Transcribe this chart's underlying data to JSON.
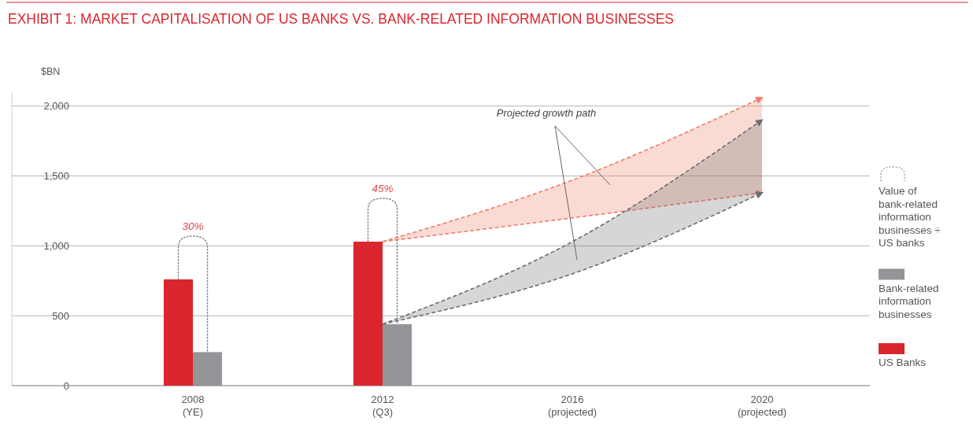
{
  "chart_data": {
    "type": "bar",
    "title": "EXHIBIT 1: MARKET CAPITALISATION OF US BANKS VS. BANK-RELATED INFORMATION BUSINESSES",
    "ylabel": "$BN",
    "categories": [
      "2008\n(YE)",
      "2012\n(Q3)",
      "2016\n(projected)",
      "2020\n(projected)"
    ],
    "series": [
      {
        "name": "US Banks",
        "color": "#d9262e",
        "values": [
          760,
          1030,
          null,
          null
        ]
      },
      {
        "name": "Bank-related information businesses",
        "color": "#939598",
        "values": [
          240,
          440,
          null,
          null
        ]
      },
      {
        "type": "line",
        "color": "#ee7c66",
        "line_style": "dashed",
        "values": [
          null,
          1030,
          1470,
          2060
        ],
        "upper": [
          null,
          1030,
          1470,
          2060
        ],
        "lower": [
          null,
          1030,
          1200,
          1380
        ]
      },
      {
        "type": "line",
        "color": "#6b6d70",
        "line_style": "dashed",
        "values": [
          null,
          440,
          1030,
          1900
        ],
        "upper": [
          null,
          440,
          1030,
          1900
        ],
        "lower": [
          null,
          440,
          800,
          1380
        ]
      }
    ],
    "ylim": [
      0,
      2100
    ],
    "yticks": [
      {
        "value": 0,
        "label": "0"
      },
      {
        "value": 500,
        "label": "500"
      },
      {
        "value": 1000,
        "label": "1,000"
      },
      {
        "value": 1500,
        "label": "1,500"
      },
      {
        "value": 2000,
        "label": "2,000"
      }
    ],
    "grid": "y",
    "legend": "right",
    "marker": "none",
    "annotations": [
      "30%",
      "45%",
      "Projected growth path",
      "Value of bank-related information businesses ÷ US banks"
    ]
  }
}
